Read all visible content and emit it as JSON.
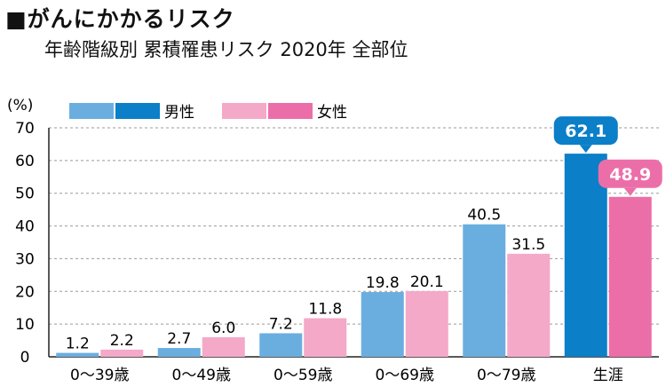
{
  "header": {
    "title": "■がんにかかるリスク",
    "subtitle": "年齢階級別 累積罹患リスク 2020年 全部位"
  },
  "colors": {
    "male": "#6aaee0",
    "male_highlight": "#0b7fc8",
    "female": "#f4a9c8",
    "female_highlight": "#ec6ea8",
    "grid": "#9a9a9a"
  },
  "chart_data": {
    "type": "bar",
    "title": "",
    "unit_label": "(%)",
    "categories": [
      "0〜39歳",
      "0〜49歳",
      "0〜59歳",
      "0〜69歳",
      "0〜79歳",
      "生涯"
    ],
    "series": [
      {
        "name": "男性",
        "values": [
          1.2,
          2.7,
          7.2,
          19.8,
          40.5,
          62.1
        ]
      },
      {
        "name": "女性",
        "values": [
          2.2,
          6.0,
          11.8,
          20.1,
          31.5,
          48.9
        ]
      }
    ],
    "value_labels": {
      "男性": [
        "1.2",
        "2.7",
        "7.2",
        "19.8",
        "40.5",
        "62.1"
      ],
      "女性": [
        "2.2",
        "6.0",
        "11.8",
        "20.1",
        "31.5",
        "48.9"
      ]
    },
    "yticks": [
      "0",
      "10",
      "20",
      "30",
      "40",
      "50",
      "60",
      "70"
    ],
    "ylim": [
      0,
      70
    ],
    "grid": true,
    "legend_position": "top-left",
    "highlight_category": "生涯"
  }
}
